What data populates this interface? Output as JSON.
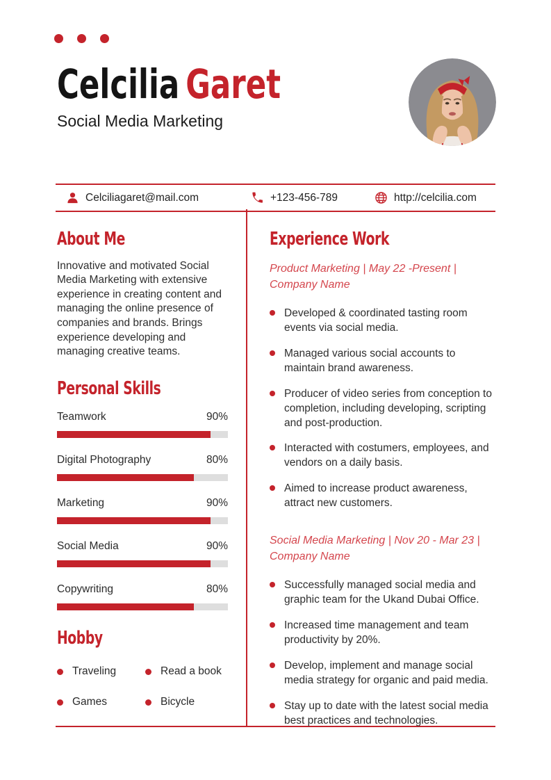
{
  "header": {
    "first_name": "Celcilia",
    "last_name": "Garet",
    "subtitle": "Social Media Marketing"
  },
  "contact": {
    "email": "Celciliagaret@mail.com",
    "phone": "+123-456-789",
    "website": "http://celcilia.com"
  },
  "about": {
    "title": "About Me",
    "text": "Innovative and motivated Social Media Marketing with extensive experience in creating content and managing the online presence of companies and brands. Brings experience developing and managing creative teams."
  },
  "skills": {
    "title": "Personal Skills",
    "items": [
      {
        "label": "Teamwork",
        "value": 90,
        "percent_label": "90%"
      },
      {
        "label": "Digital Photography",
        "value": 80,
        "percent_label": "80%"
      },
      {
        "label": "Marketing",
        "value": 90,
        "percent_label": "90%"
      },
      {
        "label": "Social Media",
        "value": 90,
        "percent_label": "90%"
      },
      {
        "label": "Copywriting",
        "value": 80,
        "percent_label": "80%"
      }
    ]
  },
  "hobby": {
    "title": "Hobby",
    "items": [
      {
        "label": "Traveling"
      },
      {
        "label": "Read a book"
      },
      {
        "label": "Games"
      },
      {
        "label": "Bicycle"
      }
    ]
  },
  "experience": {
    "title": "Experience Work",
    "jobs": [
      {
        "meta": "Product Marketing | May 22 -Present | Company Name",
        "bullets": [
          "Developed & coordinated tasting room events via social media.",
          "Managed various social accounts to maintain brand awareness.",
          "Producer of video series from conception to completion, including developing, scripting and post-production.",
          "Interacted with costumers, employees, and vendors on a daily basis.",
          "Aimed to increase product awareness, attract new customers."
        ]
      },
      {
        "meta": "Social Media Marketing | Nov 20 - Mar 23 | Company Name",
        "bullets": [
          "Successfully managed social media and graphic team for the Ukand Dubai Office.",
          "Increased time management and team productivity by 20%.",
          "Develop, implement and manage social media strategy for organic and paid media.",
          "Stay up to date with the latest social media best practices and technologies."
        ]
      }
    ]
  },
  "colors": {
    "accent_red": "#c4232b",
    "meta_red": "#d4454c",
    "heading_black": "#141414",
    "body_text": "#2f2f2f",
    "track_gray": "#dedede"
  }
}
